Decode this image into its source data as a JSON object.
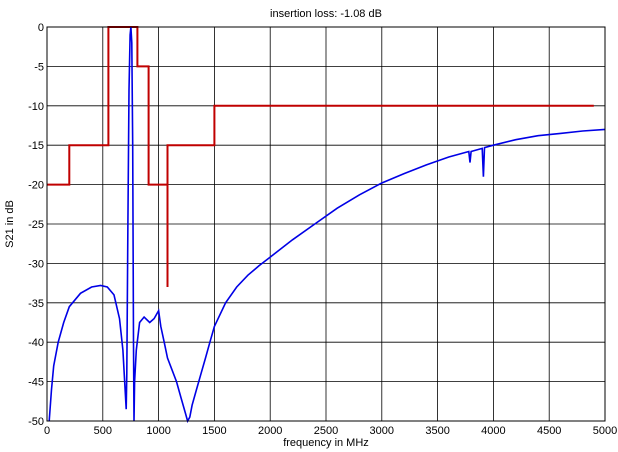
{
  "chart_data": {
    "type": "line",
    "title": "insertion loss: -1.08  dB",
    "xlabel": "frequency in MHz",
    "ylabel": "S21 in dB",
    "xlim": [
      0,
      5000
    ],
    "ylim": [
      -50,
      0
    ],
    "x_ticks": [
      0,
      500,
      1000,
      1500,
      2000,
      2500,
      3000,
      3500,
      4000,
      4500,
      5000
    ],
    "y_ticks": [
      0,
      -5,
      -10,
      -15,
      -20,
      -25,
      -30,
      -35,
      -40,
      -45,
      -50
    ],
    "grid": true,
    "series": [
      {
        "color": "#c00000",
        "points": [
          [
            0,
            -20
          ],
          [
            200,
            -20
          ],
          [
            200,
            -15
          ],
          [
            550,
            -15
          ],
          [
            550,
            0
          ],
          [
            810,
            0
          ],
          [
            810,
            -5
          ],
          [
            910,
            -5
          ],
          [
            910,
            -20
          ],
          [
            1080,
            -20
          ],
          [
            1080,
            -33
          ],
          [
            1080,
            -15
          ],
          [
            1500,
            -15
          ],
          [
            1500,
            -10
          ],
          [
            4900,
            -10
          ]
        ]
      },
      {
        "color": "#0000e6",
        "points": [
          [
            20,
            -50
          ],
          [
            40,
            -46
          ],
          [
            60,
            -43
          ],
          [
            100,
            -40
          ],
          [
            150,
            -37.5
          ],
          [
            200,
            -35.5
          ],
          [
            300,
            -33.8
          ],
          [
            400,
            -33
          ],
          [
            480,
            -32.8
          ],
          [
            540,
            -33
          ],
          [
            600,
            -34
          ],
          [
            650,
            -37
          ],
          [
            680,
            -41
          ],
          [
            700,
            -46
          ],
          [
            710,
            -48.5
          ],
          [
            715,
            -44
          ],
          [
            725,
            -25
          ],
          [
            735,
            -8
          ],
          [
            745,
            -1
          ],
          [
            752,
            0
          ],
          [
            760,
            -2
          ],
          [
            768,
            -15
          ],
          [
            775,
            -40
          ],
          [
            780,
            -50
          ],
          [
            785,
            -45
          ],
          [
            800,
            -41
          ],
          [
            830,
            -37.5
          ],
          [
            870,
            -36.8
          ],
          [
            920,
            -37.5
          ],
          [
            960,
            -37
          ],
          [
            1000,
            -36
          ],
          [
            1020,
            -38
          ],
          [
            1050,
            -40
          ],
          [
            1080,
            -42
          ],
          [
            1120,
            -43.5
          ],
          [
            1160,
            -45
          ],
          [
            1200,
            -47
          ],
          [
            1240,
            -49
          ],
          [
            1260,
            -50
          ],
          [
            1280,
            -49.5
          ],
          [
            1300,
            -48
          ],
          [
            1340,
            -46
          ],
          [
            1380,
            -44
          ],
          [
            1420,
            -42
          ],
          [
            1460,
            -40
          ],
          [
            1500,
            -38
          ],
          [
            1600,
            -35
          ],
          [
            1700,
            -33
          ],
          [
            1800,
            -31.5
          ],
          [
            1900,
            -30.3
          ],
          [
            2000,
            -29.2
          ],
          [
            2200,
            -27
          ],
          [
            2400,
            -25
          ],
          [
            2600,
            -23
          ],
          [
            2800,
            -21.3
          ],
          [
            3000,
            -19.8
          ],
          [
            3200,
            -18.6
          ],
          [
            3400,
            -17.5
          ],
          [
            3600,
            -16.5
          ],
          [
            3780,
            -15.8
          ],
          [
            3790,
            -17.2
          ],
          [
            3800,
            -15.8
          ],
          [
            3900,
            -15.4
          ],
          [
            3910,
            -19
          ],
          [
            3920,
            -15.3
          ],
          [
            4000,
            -15
          ],
          [
            4200,
            -14.3
          ],
          [
            4400,
            -13.8
          ],
          [
            4600,
            -13.5
          ],
          [
            4800,
            -13.2
          ],
          [
            5000,
            -13
          ]
        ]
      }
    ]
  }
}
